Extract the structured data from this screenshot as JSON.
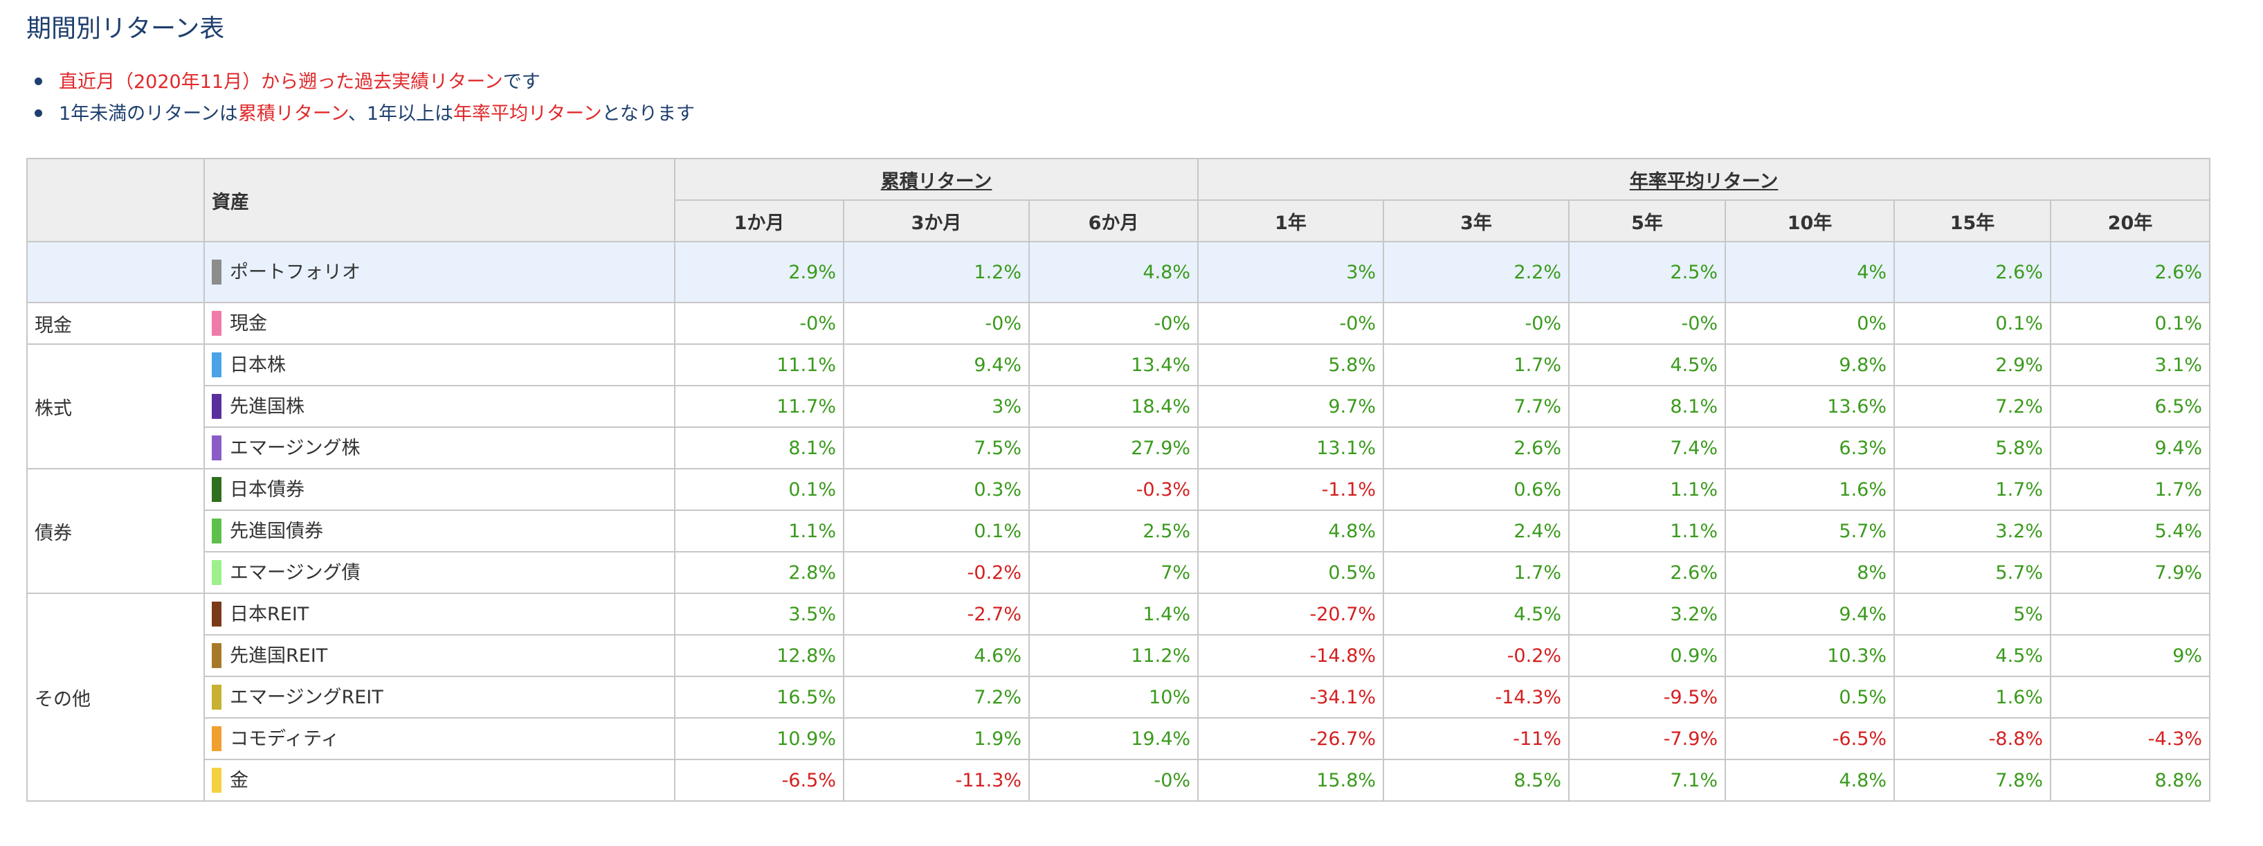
{
  "title": "期間別リターン表",
  "notes": {
    "line1": {
      "red": "直近月（2020年11月）から遡った過去実績リターン",
      "tail": "です"
    },
    "line2": {
      "t1": "1年未満のリターンは",
      "r1": "累積リターン",
      "t2": "、1年以上は",
      "r2": "年率平均リターン",
      "t3": "となります"
    }
  },
  "colors": {
    "positive": "#3a9a1c",
    "negative": "#d42020",
    "title": "#1e3f6e",
    "note_red": "#e0282a"
  },
  "table": {
    "asset_header": "資産",
    "group_cumulative": "累積リターン",
    "group_annualized": "年率平均リターン",
    "periods": [
      "1か月",
      "3か月",
      "6か月",
      "1年",
      "3年",
      "5年",
      "10年",
      "15年",
      "20年"
    ],
    "portfolio": {
      "name": "ポートフォリオ",
      "color": "#8c8c8c",
      "values": [
        "2.9%",
        "1.2%",
        "4.8%",
        "3%",
        "2.2%",
        "2.5%",
        "4%",
        "2.6%",
        "2.6%"
      ]
    },
    "categories": [
      {
        "name": "現金",
        "assets": [
          {
            "name": "現金",
            "color": "#f07aa8",
            "values": [
              "-0%",
              "-0%",
              "-0%",
              "-0%",
              "-0%",
              "-0%",
              "0%",
              "0.1%",
              "0.1%"
            ]
          }
        ]
      },
      {
        "name": "株式",
        "assets": [
          {
            "name": "日本株",
            "color": "#4aa3e8",
            "values": [
              "11.1%",
              "9.4%",
              "13.4%",
              "5.8%",
              "1.7%",
              "4.5%",
              "9.8%",
              "2.9%",
              "3.1%"
            ]
          },
          {
            "name": "先進国株",
            "color": "#5a2e9c",
            "values": [
              "11.7%",
              "3%",
              "18.4%",
              "9.7%",
              "7.7%",
              "8.1%",
              "13.6%",
              "7.2%",
              "6.5%"
            ]
          },
          {
            "name": "エマージング株",
            "color": "#8a5cc8",
            "values": [
              "8.1%",
              "7.5%",
              "27.9%",
              "13.1%",
              "2.6%",
              "7.4%",
              "6.3%",
              "5.8%",
              "9.4%"
            ]
          }
        ]
      },
      {
        "name": "債券",
        "assets": [
          {
            "name": "日本債券",
            "color": "#2e6e1e",
            "values": [
              "0.1%",
              "0.3%",
              "-0.3%",
              "-1.1%",
              "0.6%",
              "1.1%",
              "1.6%",
              "1.7%",
              "1.7%"
            ]
          },
          {
            "name": "先進国債券",
            "color": "#5cc04a",
            "values": [
              "1.1%",
              "0.1%",
              "2.5%",
              "4.8%",
              "2.4%",
              "1.1%",
              "5.7%",
              "3.2%",
              "5.4%"
            ]
          },
          {
            "name": "エマージング債",
            "color": "#9ef08c",
            "values": [
              "2.8%",
              "-0.2%",
              "7%",
              "0.5%",
              "1.7%",
              "2.6%",
              "8%",
              "5.7%",
              "7.9%"
            ]
          }
        ]
      },
      {
        "name": "その他",
        "assets": [
          {
            "name": "日本REIT",
            "color": "#7a3a1a",
            "values": [
              "3.5%",
              "-2.7%",
              "1.4%",
              "-20.7%",
              "4.5%",
              "3.2%",
              "9.4%",
              "5%",
              ""
            ]
          },
          {
            "name": "先進国REIT",
            "color": "#a8782a",
            "values": [
              "12.8%",
              "4.6%",
              "11.2%",
              "-14.8%",
              "-0.2%",
              "0.9%",
              "10.3%",
              "4.5%",
              "9%"
            ]
          },
          {
            "name": "エマージングREIT",
            "color": "#c8b030",
            "values": [
              "16.5%",
              "7.2%",
              "10%",
              "-34.1%",
              "-14.3%",
              "-9.5%",
              "0.5%",
              "1.6%",
              ""
            ]
          },
          {
            "name": "コモディティ",
            "color": "#f0a030",
            "values": [
              "10.9%",
              "1.9%",
              "19.4%",
              "-26.7%",
              "-11%",
              "-7.9%",
              "-6.5%",
              "-8.8%",
              "-4.3%"
            ]
          },
          {
            "name": "金",
            "color": "#f5d040",
            "values": [
              "-6.5%",
              "-11.3%",
              "-0%",
              "15.8%",
              "8.5%",
              "7.1%",
              "4.8%",
              "7.8%",
              "8.8%"
            ]
          }
        ]
      }
    ]
  }
}
